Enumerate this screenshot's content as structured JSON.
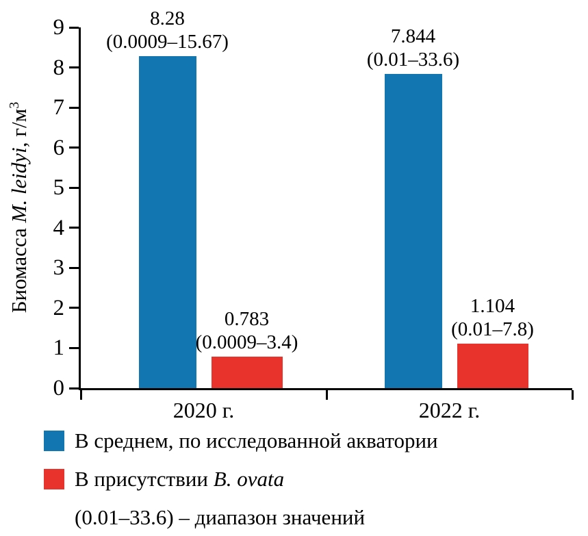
{
  "chart_data": {
    "type": "bar",
    "title": "",
    "categories": [
      "2020 г.",
      "2022 г."
    ],
    "series": [
      {
        "name": "В среднем, по исследованной акватории",
        "color": "#1277b0",
        "values": [
          8.28,
          7.844
        ],
        "value_labels": [
          "8.28",
          "7.844"
        ],
        "range_labels": [
          "(0.0009–15.67)",
          "(0.01–33.6)"
        ]
      },
      {
        "name": "В присутствии B. ovata",
        "color": "#e8332c",
        "values": [
          0.783,
          1.104
        ],
        "value_labels": [
          "0.783",
          "1.104"
        ],
        "range_labels": [
          "(0.0009–3.4)",
          "(0.01–7.8)"
        ]
      }
    ],
    "xlabel": "",
    "ylabel": "Биомасса M. leidyi, г/м³",
    "ylabel_parts": {
      "prefix": "Биомасса ",
      "italic": "M. leidyi",
      "suffix": ", г/м",
      "sup": "3"
    },
    "ylim": [
      0,
      9
    ],
    "yticks": [
      0,
      1,
      2,
      3,
      4,
      5,
      6,
      7,
      8,
      9
    ],
    "grid": false,
    "legend_position": "bottom-left",
    "axis_color": "#000000"
  },
  "legend": {
    "series2_prefix": "В присутствии ",
    "series2_italic": "B. ovata",
    "note": "(0.01–33.6) – диапазон значений"
  }
}
